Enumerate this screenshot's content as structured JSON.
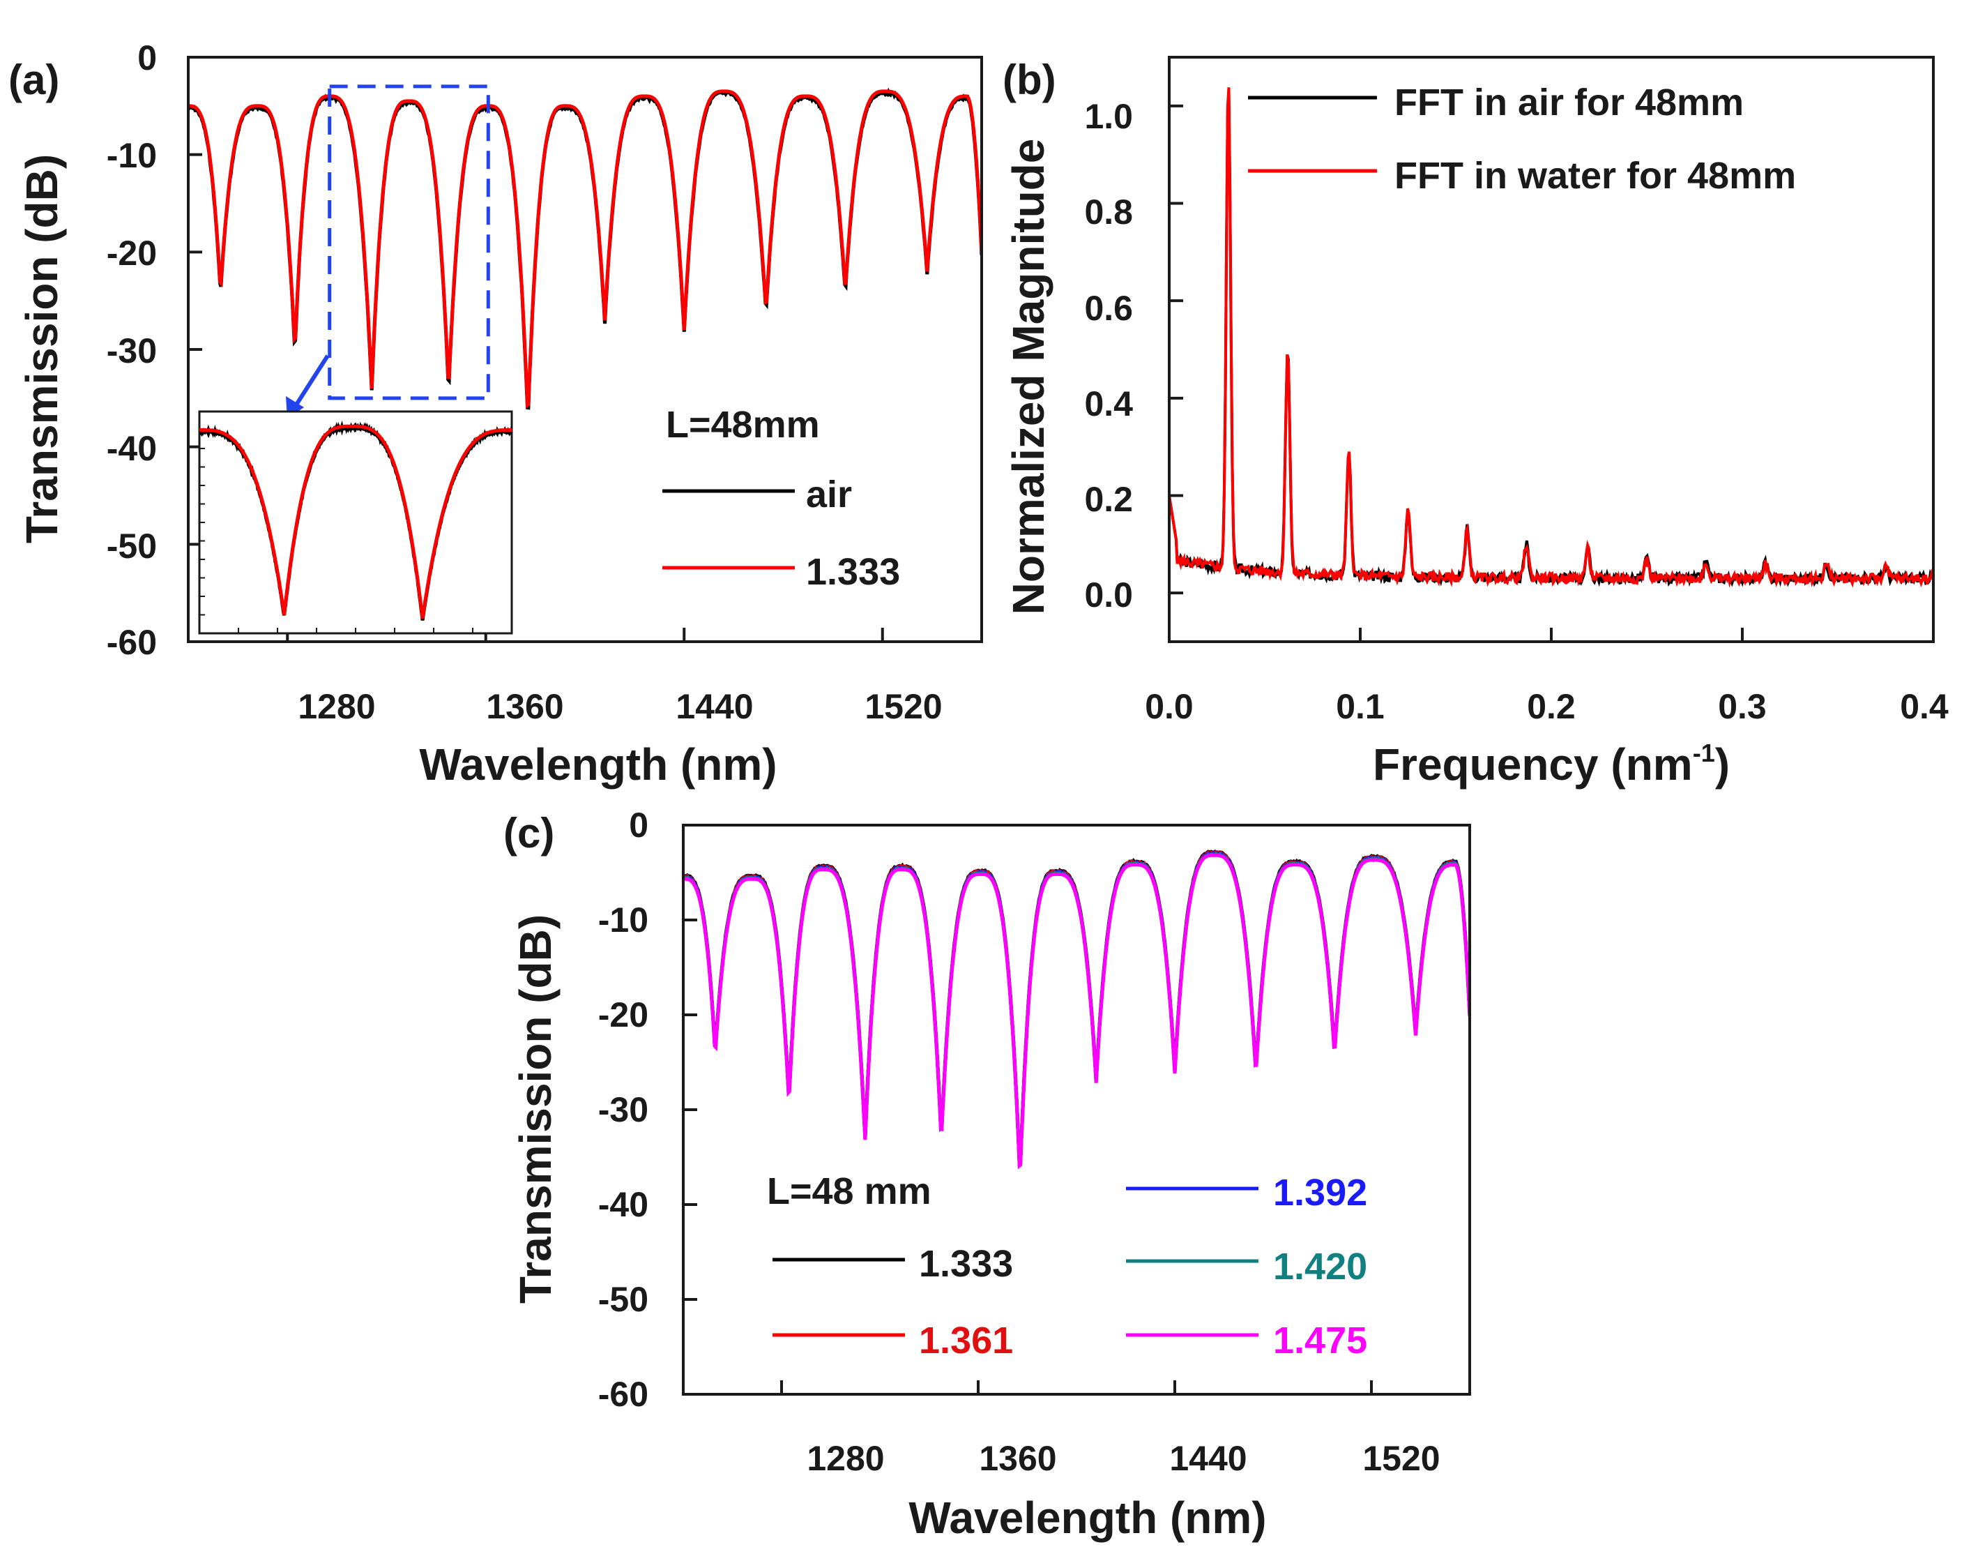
{
  "chart_data": [
    {
      "panel": "(a)",
      "type": "line",
      "xlabel": "Wavelength (nm)",
      "ylabel": "Transmission (dB)",
      "xlim": [
        1240,
        1560
      ],
      "ylim": [
        -60,
        0
      ],
      "xticks": [
        "1280",
        "1360",
        "1440",
        "1520"
      ],
      "yticks": [
        "0",
        "-10",
        "-20",
        "-30",
        "-40",
        "-50",
        "-60"
      ],
      "legend_title": "L=48mm",
      "legend": [
        {
          "name": "air",
          "color": "#000000"
        },
        {
          "name": "1.333",
          "color": "#ff0000"
        }
      ],
      "dips": [
        {
          "x": 1253,
          "y": -24
        },
        {
          "x": 1283,
          "y": -30
        },
        {
          "x": 1314,
          "y": -34
        },
        {
          "x": 1345,
          "y": -34
        },
        {
          "x": 1377,
          "y": -37
        },
        {
          "x": 1408,
          "y": -27
        },
        {
          "x": 1440,
          "y": -28
        },
        {
          "x": 1473,
          "y": -26
        },
        {
          "x": 1505,
          "y": -24
        },
        {
          "x": 1538,
          "y": -22
        }
      ],
      "peaks": [
        {
          "x": 1240,
          "y": -5
        },
        {
          "x": 1268,
          "y": -5
        },
        {
          "x": 1297,
          "y": -4
        },
        {
          "x": 1329,
          "y": -4.5
        },
        {
          "x": 1361,
          "y": -5
        },
        {
          "x": 1392,
          "y": -5
        },
        {
          "x": 1424,
          "y": -4
        },
        {
          "x": 1456,
          "y": -3.5
        },
        {
          "x": 1489,
          "y": -4
        },
        {
          "x": 1521,
          "y": -3.5
        },
        {
          "x": 1554,
          "y": -4
        }
      ],
      "end_value": -20,
      "zoom_box_x": [
        1297,
        1361
      ],
      "zoom_box_y": [
        -3,
        -35
      ],
      "inset": {
        "xlim": [
          1295,
          1365
        ],
        "ylim": [
          -60,
          0
        ]
      }
    },
    {
      "panel": "(b)",
      "type": "line",
      "xlabel": "Frequency (nm",
      "xlabel_sup": "-1",
      "xlabel_close": ")",
      "ylabel": "Normalized Magnitude",
      "xlim": [
        0,
        0.4
      ],
      "ylim": [
        -0.1,
        1.1
      ],
      "xticks": [
        "0.0",
        "0.1",
        "0.2",
        "0.3",
        "0.4"
      ],
      "yticks": [
        "0.0",
        "0.2",
        "0.4",
        "0.6",
        "0.8",
        "1.0"
      ],
      "legend": [
        {
          "name": "FFT in air for 48mm",
          "color": "#000000"
        },
        {
          "name": "FFT in water for 48mm",
          "color": "#ff0000"
        }
      ],
      "peaks": [
        {
          "x": 0.031,
          "y": 1.0
        },
        {
          "x": 0.062,
          "y": 0.46
        },
        {
          "x": 0.094,
          "y": 0.25
        },
        {
          "x": 0.125,
          "y": 0.14
        },
        {
          "x": 0.156,
          "y": 0.1
        },
        {
          "x": 0.187,
          "y": 0.07
        },
        {
          "x": 0.219,
          "y": 0.06
        },
        {
          "x": 0.25,
          "y": 0.04
        },
        {
          "x": 0.281,
          "y": 0.035
        },
        {
          "x": 0.312,
          "y": 0.03
        },
        {
          "x": 0.344,
          "y": 0.03
        },
        {
          "x": 0.375,
          "y": 0.025
        }
      ],
      "start_value": 0.2
    },
    {
      "panel": "(c)",
      "type": "line",
      "xlabel": "Wavelength (nm)",
      "ylabel": "Transmission (dB)",
      "xlim": [
        1240,
        1560
      ],
      "ylim": [
        -60,
        0
      ],
      "xticks": [
        "1280",
        "1360",
        "1440",
        "1520"
      ],
      "yticks": [
        "0",
        "-10",
        "-20",
        "-30",
        "-40",
        "-50",
        "-60"
      ],
      "legend_title": "L=48 mm",
      "legend": [
        {
          "name": "1.333",
          "color": "#000000"
        },
        {
          "name": "1.361",
          "color": "#ff0000"
        },
        {
          "name": "1.392",
          "color": "#1a1aff"
        },
        {
          "name": "1.420",
          "color": "#108080"
        },
        {
          "name": "1.475",
          "color": "#ff00ff"
        }
      ],
      "dips": [
        {
          "x": 1253,
          "y": -24
        },
        {
          "x": 1283,
          "y": -29
        },
        {
          "x": 1314,
          "y": -33
        },
        {
          "x": 1345,
          "y": -33
        },
        {
          "x": 1377,
          "y": -37
        },
        {
          "x": 1408,
          "y": -27
        },
        {
          "x": 1440,
          "y": -26
        },
        {
          "x": 1473,
          "y": -26
        },
        {
          "x": 1505,
          "y": -24
        },
        {
          "x": 1538,
          "y": -22
        }
      ],
      "peaks": [
        {
          "x": 1240,
          "y": -5.5
        },
        {
          "x": 1268,
          "y": -5.5
        },
        {
          "x": 1297,
          "y": -4.5
        },
        {
          "x": 1329,
          "y": -4.5
        },
        {
          "x": 1361,
          "y": -5
        },
        {
          "x": 1392,
          "y": -5
        },
        {
          "x": 1424,
          "y": -4
        },
        {
          "x": 1456,
          "y": -3
        },
        {
          "x": 1489,
          "y": -4
        },
        {
          "x": 1521,
          "y": -3.5
        },
        {
          "x": 1554,
          "y": -4
        }
      ],
      "end_value": -20
    }
  ]
}
